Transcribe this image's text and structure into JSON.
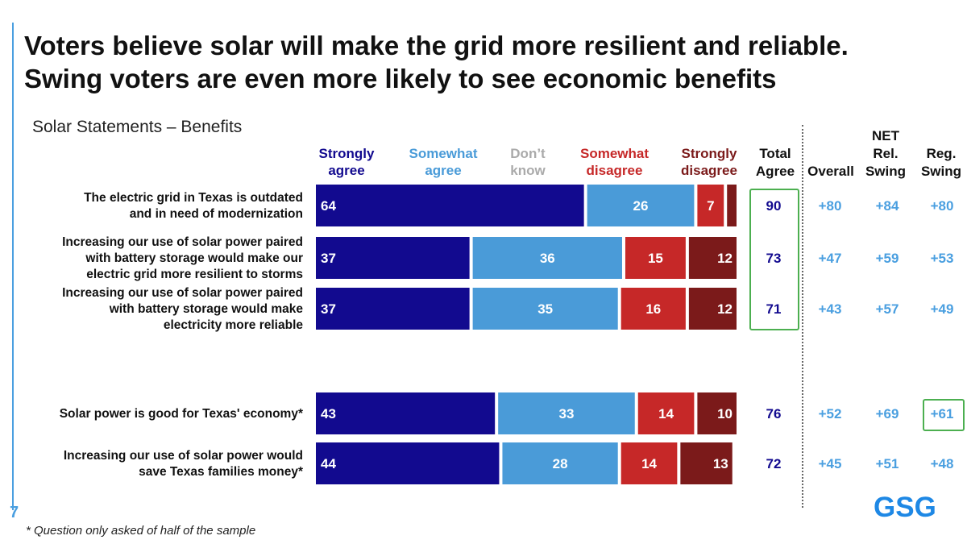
{
  "title_line1": "Voters believe solar will make the grid more resilient and reliable.",
  "title_line2": "Swing voters are even more likely to see economic benefits",
  "subtitle": "Solar Statements – Benefits",
  "slide_number": "7",
  "footnote": "* Question only asked of half of the sample",
  "logo": "GSG",
  "colors": {
    "strongly_agree": "#120a8f",
    "somewhat_agree": "#4a9bd8",
    "dont_know": "#aaaaaa",
    "somewhat_disagree": "#c62828",
    "strongly_disagree": "#7b1a1a",
    "net_text": "#4a9fe0",
    "total_text": "#120a8f",
    "highlight": "#4caf50"
  },
  "columns": {
    "total": [
      "Total",
      "Agree"
    ],
    "overall": "Overall",
    "net": "NET",
    "rel_swing": [
      "Rel.",
      "Swing"
    ],
    "reg_swing": [
      "Reg.",
      "Swing"
    ]
  },
  "chart_data": {
    "type": "bar",
    "stacked": true,
    "orientation": "horizontal",
    "scale": [
      0,
      100
    ],
    "categories": [
      [
        "The electric grid in Texas is outdated",
        "and in need of modernization"
      ],
      [
        "Increasing our use of solar power paired",
        "with battery storage would make our",
        "electric grid more resilient to storms"
      ],
      [
        "Increasing our use of solar power paired",
        "with battery storage would make",
        "electricity more reliable"
      ],
      [
        "Solar power is good for Texas' economy*"
      ],
      [
        "Increasing our use of solar power would",
        "save Texas families money*"
      ]
    ],
    "series": [
      {
        "name": [
          "Strongly",
          "agree"
        ],
        "values": [
          64,
          37,
          37,
          43,
          44
        ],
        "labels": [
          "64",
          "37",
          "37",
          "43",
          "44"
        ]
      },
      {
        "name": [
          "Somewhat",
          "agree"
        ],
        "values": [
          26,
          36,
          35,
          33,
          28
        ],
        "labels": [
          "26",
          "36",
          "35",
          "33",
          "28"
        ]
      },
      {
        "name": [
          "Don’t",
          "know"
        ],
        "values": [
          0,
          0,
          0,
          0,
          0
        ],
        "labels": [
          "",
          "",
          "",
          "",
          ""
        ]
      },
      {
        "name": [
          "Somewhat",
          "disagree"
        ],
        "values": [
          7,
          15,
          16,
          14,
          14
        ],
        "labels": [
          "7",
          "15",
          "16",
          "14",
          "14"
        ]
      },
      {
        "name": [
          "Strongly",
          "disagree"
        ],
        "values": [
          3,
          12,
          12,
          10,
          13
        ],
        "labels": [
          "",
          "12",
          "12",
          "10",
          "13"
        ]
      }
    ],
    "total_agree": [
      "90",
      "73",
      "71",
      "76",
      "72"
    ],
    "net_overall": [
      "+80",
      "+47",
      "+43",
      "+52",
      "+45"
    ],
    "net_rel_swing": [
      "+84",
      "+59",
      "+57",
      "+69",
      "+51"
    ],
    "net_reg_swing": [
      "+80",
      "+53",
      "+49",
      "+61",
      "+48"
    ]
  }
}
